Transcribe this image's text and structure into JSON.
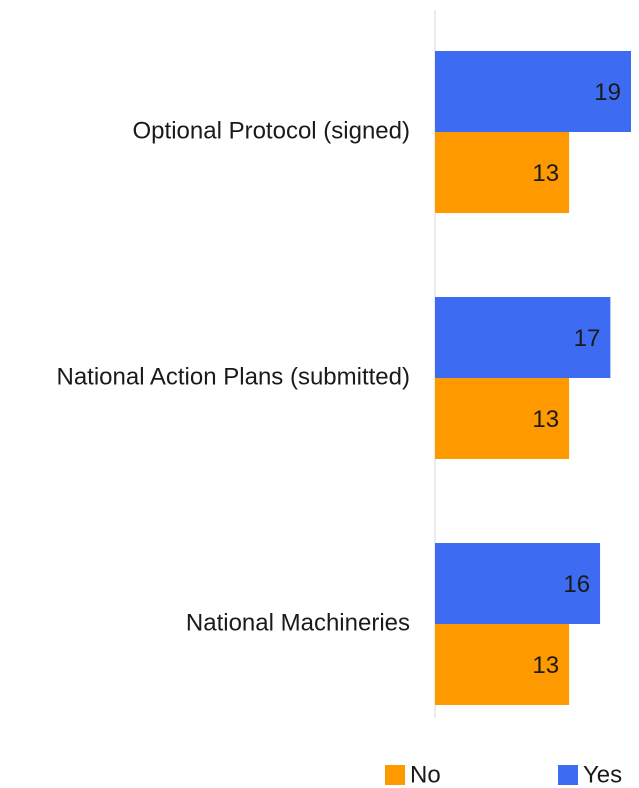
{
  "chart_data": {
    "type": "bar",
    "orientation": "horizontal",
    "categories": [
      "Optional Protocol (signed)",
      "National Action Plans (submitted)",
      "National Machineries"
    ],
    "series": [
      {
        "name": "No",
        "color": "#ff9900",
        "values": [
          13,
          13,
          13
        ]
      },
      {
        "name": "Yes",
        "color": "#3d6cf2",
        "values": [
          19,
          17,
          16
        ]
      }
    ],
    "legend": "bottom"
  }
}
